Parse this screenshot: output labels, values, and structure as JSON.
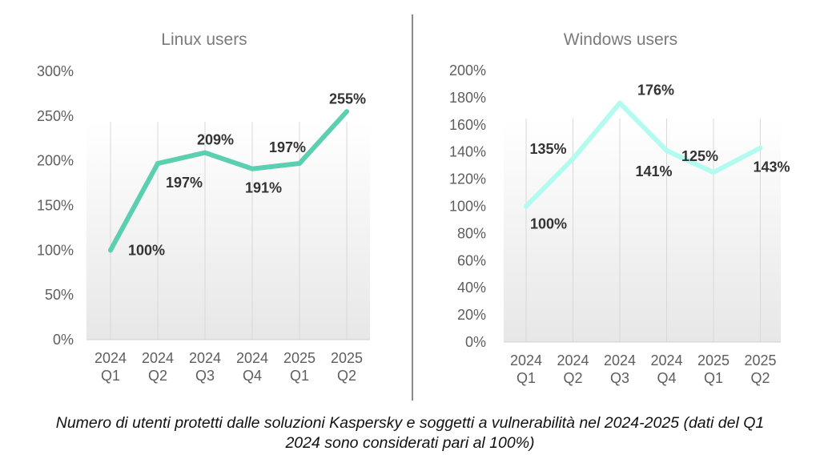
{
  "chart_data": [
    {
      "type": "line",
      "title": "Linux users",
      "categories": [
        [
          "2024",
          "Q1"
        ],
        [
          "2024",
          "Q2"
        ],
        [
          "2024",
          "Q3"
        ],
        [
          "2024",
          "Q4"
        ],
        [
          "2025",
          "Q1"
        ],
        [
          "2025",
          "Q2"
        ]
      ],
      "values": [
        100,
        197,
        209,
        191,
        197,
        255
      ],
      "value_labels": [
        "100%",
        "197%",
        "209%",
        "191%",
        "197%",
        "255%"
      ],
      "ylim": [
        0,
        300
      ],
      "yticks": [
        "0%",
        "50%",
        "100%",
        "150%",
        "200%",
        "250%",
        "300%"
      ],
      "ytick_values": [
        0,
        50,
        100,
        150,
        200,
        250,
        300
      ],
      "xlabel": "",
      "ylabel": "",
      "color": "#5ccfb0"
    },
    {
      "type": "line",
      "title": "Windows users",
      "categories": [
        [
          "2024",
          "Q1"
        ],
        [
          "2024",
          "Q2"
        ],
        [
          "2024",
          "Q3"
        ],
        [
          "2024",
          "Q4"
        ],
        [
          "2025",
          "Q1"
        ],
        [
          "2025",
          "Q2"
        ]
      ],
      "values": [
        100,
        135,
        176,
        141,
        125,
        143
      ],
      "value_labels": [
        "100%",
        "135%",
        "176%",
        "141%",
        "125%",
        "143%"
      ],
      "ylim": [
        0,
        200
      ],
      "yticks": [
        "0%",
        "20%",
        "40%",
        "60%",
        "80%",
        "100%",
        "120%",
        "140%",
        "160%",
        "180%",
        "200%"
      ],
      "ytick_values": [
        0,
        20,
        40,
        60,
        80,
        100,
        120,
        140,
        160,
        180,
        200
      ],
      "xlabel": "",
      "ylabel": "",
      "color": "#b2fbee"
    }
  ],
  "caption": {
    "line1": "Numero di utenti protetti dalle soluzioni Kaspersky e soggetti a vulnerabilità nel 2024-2025 (dati del Q1",
    "line2": "2024 sono considerati pari al 100%)"
  }
}
